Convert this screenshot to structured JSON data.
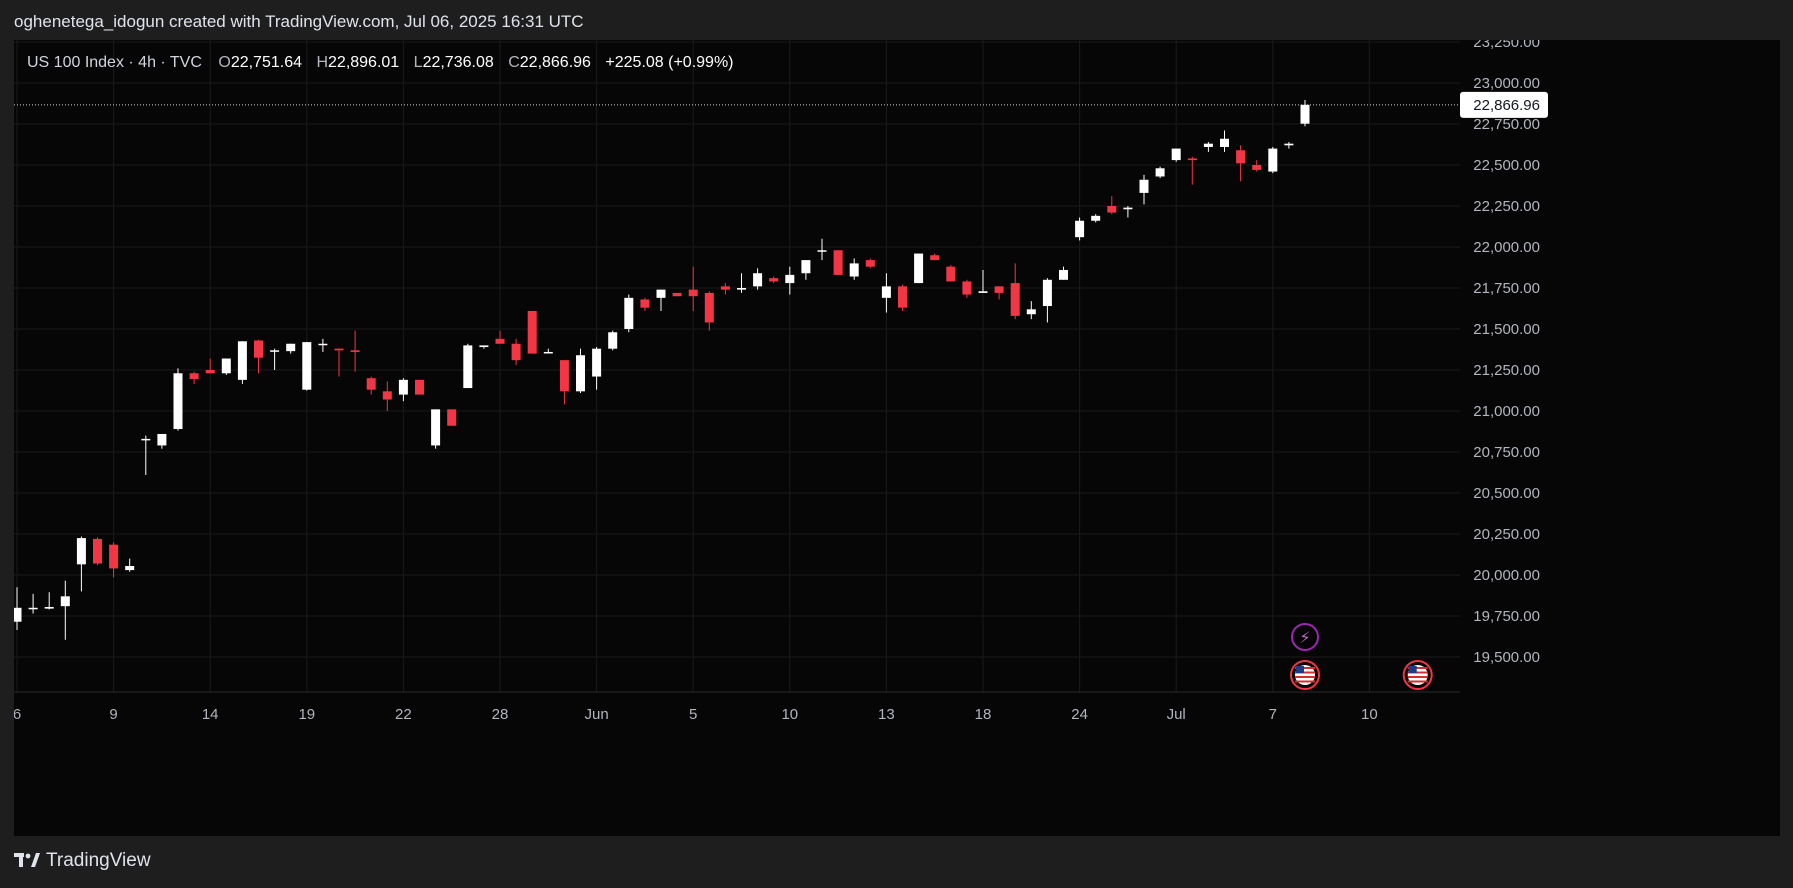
{
  "header": {
    "credit": "oghenetega_idogun created with TradingView.com, Jul 06, 2025 16:31 UTC"
  },
  "legend": {
    "symbol": "US 100 Index · 4h · TVC",
    "o_label": "O",
    "o_value": "22,751.64",
    "h_label": "H",
    "h_value": "22,896.01",
    "l_label": "L",
    "l_value": "22,736.08",
    "c_label": "C",
    "c_value": "22,866.96",
    "change": "+225.08 (+0.99%)"
  },
  "footer": {
    "brand": "TradingView"
  },
  "colors": {
    "up": "#ffffff",
    "down": "#f23645",
    "bg": "#060606",
    "grid": "#1a1a1a",
    "text": "#b2b5be"
  },
  "events": [
    {
      "icon": "lightning-icon",
      "x_date": "Jul 5"
    },
    {
      "icon": "us-flag-icon",
      "x_date": "Jul 5"
    },
    {
      "icon": "us-flag-icon",
      "x_date": "Jul 10"
    }
  ],
  "chart_data": {
    "type": "candlestick",
    "timeframe": "4h",
    "ylim": [
      19350,
      23300
    ],
    "y_ticks": [
      "23,250.00",
      "23,000.00",
      "22,750.00",
      "22,500.00",
      "22,250.00",
      "22,000.00",
      "21,750.00",
      "21,500.00",
      "21,250.00",
      "21,000.00",
      "20,750.00",
      "20,500.00",
      "20,250.00",
      "20,000.00",
      "19,750.00",
      "19,500.00"
    ],
    "y_tick_values": [
      23250,
      23000,
      22750,
      22500,
      22250,
      22000,
      21750,
      21500,
      21250,
      21000,
      20750,
      20500,
      20250,
      20000,
      19750,
      19500
    ],
    "x_ticks": [
      "6",
      "9",
      "14",
      "19",
      "22",
      "28",
      "Jun",
      "5",
      "10",
      "13",
      "18",
      "24",
      "Jul",
      "7",
      "10"
    ],
    "x_tick_index": [
      0,
      6,
      12,
      18,
      24,
      30,
      36,
      42,
      48,
      54,
      60,
      66,
      72,
      78,
      84
    ],
    "last_price": "22,866.96",
    "last_price_value": 22866.96,
    "candles": [
      [
        19715,
        19925,
        19665,
        19800
      ],
      [
        19795,
        19885,
        19765,
        19800
      ],
      [
        19795,
        19895,
        19790,
        19805
      ],
      [
        19810,
        19965,
        19605,
        19870
      ],
      [
        20065,
        20235,
        19900,
        20225
      ],
      [
        20220,
        20230,
        20060,
        20070
      ],
      [
        20185,
        20200,
        19985,
        20040
      ],
      [
        20030,
        20100,
        20020,
        20055
      ],
      [
        20830,
        20850,
        20610,
        20830
      ],
      [
        20790,
        20860,
        20770,
        20860
      ],
      [
        20890,
        21260,
        20880,
        21230
      ],
      [
        21230,
        21240,
        21165,
        21195
      ],
      [
        21250,
        21320,
        21230,
        21230
      ],
      [
        21230,
        21310,
        21220,
        21320
      ],
      [
        21190,
        21425,
        21165,
        21425
      ],
      [
        21430,
        21435,
        21230,
        21325
      ],
      [
        21365,
        21380,
        21250,
        21370
      ],
      [
        21365,
        21410,
        21350,
        21410
      ],
      [
        21130,
        21420,
        21125,
        21420
      ],
      [
        21410,
        21440,
        21360,
        21410
      ],
      [
        21380,
        21380,
        21210,
        21370
      ],
      [
        21370,
        21490,
        21240,
        21360
      ],
      [
        21200,
        21210,
        21100,
        21130
      ],
      [
        21120,
        21180,
        21000,
        21070
      ],
      [
        21100,
        21200,
        21060,
        21190
      ],
      [
        21190,
        21190,
        21100,
        21100
      ],
      [
        20790,
        21010,
        20770,
        21010
      ],
      [
        21010,
        21010,
        20910,
        20910
      ],
      [
        21140,
        21410,
        21140,
        21400
      ],
      [
        21390,
        21400,
        21380,
        21400
      ],
      [
        21440,
        21490,
        21420,
        21410
      ],
      [
        21410,
        21440,
        21280,
        21310
      ],
      [
        21610,
        21610,
        21350,
        21350
      ],
      [
        21360,
        21380,
        21350,
        21360
      ],
      [
        21310,
        21310,
        21040,
        21120
      ],
      [
        21120,
        21380,
        21110,
        21340
      ],
      [
        21210,
        21390,
        21130,
        21380
      ],
      [
        21380,
        21490,
        21370,
        21480
      ],
      [
        21500,
        21710,
        21480,
        21690
      ],
      [
        21680,
        21690,
        21610,
        21630
      ],
      [
        21690,
        21740,
        21610,
        21740
      ],
      [
        21720,
        21720,
        21700,
        21700
      ],
      [
        21740,
        21880,
        21610,
        21700
      ],
      [
        21720,
        21730,
        21490,
        21540
      ],
      [
        21760,
        21780,
        21710,
        21740
      ],
      [
        21740,
        21840,
        21720,
        21750
      ],
      [
        21760,
        21870,
        21740,
        21840
      ],
      [
        21810,
        21820,
        21780,
        21790
      ],
      [
        21780,
        21880,
        21710,
        21830
      ],
      [
        21840,
        21920,
        21800,
        21920
      ],
      [
        21980,
        22050,
        21920,
        21980
      ],
      [
        21980,
        21980,
        21830,
        21830
      ],
      [
        21820,
        21930,
        21800,
        21900
      ],
      [
        21920,
        21930,
        21870,
        21880
      ],
      [
        21690,
        21840,
        21600,
        21760
      ],
      [
        21760,
        21770,
        21610,
        21630
      ],
      [
        21780,
        21960,
        21780,
        21960
      ],
      [
        21950,
        21960,
        21920,
        21920
      ],
      [
        21880,
        21890,
        21790,
        21790
      ],
      [
        21790,
        21800,
        21690,
        21710
      ],
      [
        21720,
        21860,
        21720,
        21730
      ],
      [
        21760,
        21760,
        21680,
        21720
      ],
      [
        21780,
        21900,
        21560,
        21580
      ],
      [
        21590,
        21670,
        21560,
        21620
      ],
      [
        21640,
        21810,
        21540,
        21800
      ],
      [
        21800,
        21880,
        21800,
        21860
      ],
      [
        22060,
        22180,
        22040,
        22160
      ],
      [
        22160,
        22200,
        22150,
        22190
      ],
      [
        22250,
        22310,
        22200,
        22210
      ],
      [
        22230,
        22250,
        22180,
        22240
      ],
      [
        22330,
        22440,
        22260,
        22410
      ],
      [
        22430,
        22490,
        22420,
        22480
      ],
      [
        22530,
        22600,
        22520,
        22600
      ],
      [
        22540,
        22550,
        22380,
        22530
      ],
      [
        22610,
        22640,
        22580,
        22630
      ],
      [
        22610,
        22710,
        22580,
        22660
      ],
      [
        22590,
        22620,
        22400,
        22510
      ],
      [
        22500,
        22530,
        22460,
        22470
      ],
      [
        22460,
        22610,
        22450,
        22600
      ],
      [
        22620,
        22640,
        22600,
        22630
      ],
      [
        22752,
        22896,
        22736,
        22867
      ]
    ]
  }
}
